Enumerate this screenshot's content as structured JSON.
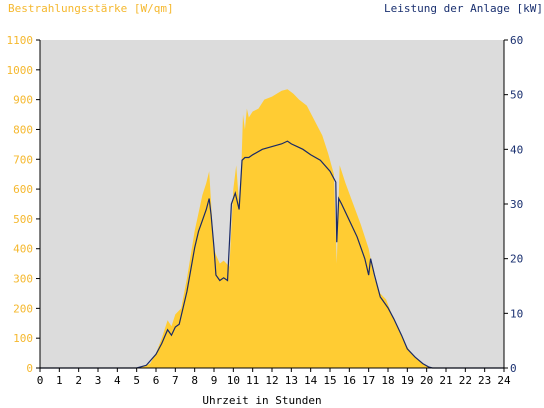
{
  "chart_data": {
    "type": "area",
    "title_left": "Bestrahlungsstärke [W/qm]",
    "title_right": "Leistung der Anlage [kW]",
    "xlabel": "Uhrzeit in Stunden",
    "xlim": [
      0,
      24
    ],
    "ylim_left": [
      0,
      1100
    ],
    "ylim_right": [
      0,
      60
    ],
    "x_ticks": [
      "0",
      "1",
      "2",
      "3",
      "4",
      "5",
      "6",
      "7",
      "8",
      "9",
      "10",
      "11",
      "12",
      "13",
      "14",
      "15",
      "16",
      "17",
      "18",
      "19",
      "20",
      "21",
      "22",
      "23",
      "24"
    ],
    "y_left_ticks": [
      "0",
      "100",
      "200",
      "300",
      "400",
      "500",
      "600",
      "700",
      "800",
      "900",
      "1000",
      "1100"
    ],
    "y_right_ticks": [
      "0",
      "10",
      "20",
      "30",
      "40",
      "50",
      "60"
    ],
    "grid": false,
    "colors": {
      "plot_bg": "#dcdcdc",
      "irradiance_fill": "#ffcc33",
      "power_line": "#1a2a66",
      "left_axis_text": "#f5b82e",
      "right_axis_text": "#1a3070",
      "axis": "#000000"
    },
    "series": [
      {
        "name": "Bestrahlungsstärke",
        "axis": "left",
        "style": "area",
        "x": [
          0,
          5.0,
          5.4,
          5.7,
          6.0,
          6.3,
          6.6,
          6.8,
          7.0,
          7.3,
          7.6,
          7.8,
          8.0,
          8.2,
          8.4,
          8.6,
          8.75,
          8.9,
          9.0,
          9.1,
          9.3,
          9.5,
          9.8,
          10.0,
          10.15,
          10.3,
          10.4,
          10.5,
          10.6,
          10.7,
          10.8,
          11.0,
          11.3,
          11.6,
          12.0,
          12.5,
          12.8,
          13.1,
          13.4,
          13.8,
          14.2,
          14.6,
          14.9,
          15.2,
          15.35,
          15.5,
          15.8,
          16.2,
          16.6,
          17.0,
          17.3,
          17.6,
          17.9,
          18.2,
          18.6,
          19.0,
          19.4,
          19.8,
          20.1,
          20.3,
          24
        ],
        "y": [
          0,
          0,
          5,
          15,
          50,
          100,
          160,
          140,
          180,
          200,
          300,
          380,
          460,
          520,
          580,
          620,
          660,
          500,
          400,
          380,
          350,
          360,
          340,
          600,
          680,
          550,
          640,
          850,
          800,
          870,
          840,
          860,
          870,
          900,
          910,
          930,
          935,
          920,
          900,
          880,
          830,
          780,
          720,
          650,
          350,
          680,
          620,
          550,
          480,
          400,
          300,
          250,
          230,
          180,
          120,
          70,
          35,
          15,
          5,
          0,
          0
        ]
      },
      {
        "name": "Leistung der Anlage",
        "axis": "right",
        "style": "line",
        "x": [
          0,
          5.0,
          5.5,
          6.0,
          6.3,
          6.6,
          6.8,
          7.0,
          7.2,
          7.4,
          7.6,
          7.8,
          8.0,
          8.2,
          8.4,
          8.6,
          8.75,
          8.85,
          9.0,
          9.1,
          9.3,
          9.5,
          9.7,
          9.9,
          10.1,
          10.3,
          10.45,
          10.6,
          10.8,
          11.0,
          11.5,
          12.0,
          12.5,
          12.8,
          13.0,
          13.3,
          13.6,
          14.0,
          14.5,
          15.0,
          15.3,
          15.35,
          15.45,
          15.6,
          16.0,
          16.4,
          16.8,
          17.0,
          17.1,
          17.3,
          17.6,
          17.8,
          18.0,
          18.3,
          18.7,
          19.0,
          19.4,
          19.8,
          20.1,
          20.3,
          24
        ],
        "y": [
          0,
          0,
          0.5,
          2.5,
          4.5,
          7,
          6,
          7.5,
          8,
          11,
          14,
          18,
          22,
          25,
          27,
          29,
          31,
          28,
          22,
          17,
          16,
          16.5,
          16,
          30,
          32,
          29,
          38,
          38.5,
          38.5,
          39,
          40,
          40.5,
          41,
          41.5,
          41,
          40.5,
          40,
          39,
          38,
          36,
          34,
          23,
          31,
          30,
          27,
          24,
          20,
          17,
          20,
          17,
          13,
          12,
          11,
          9,
          6,
          3.5,
          2,
          0.8,
          0.2,
          0,
          0
        ]
      }
    ]
  }
}
